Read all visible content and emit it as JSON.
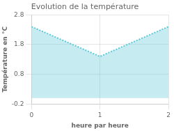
{
  "chart_data": {
    "type": "area",
    "title": "Evolution de la température",
    "xlabel": "heure par heure",
    "ylabel": "Température en °C",
    "x": [
      0,
      1,
      2
    ],
    "values": [
      2.4,
      1.4,
      2.4
    ],
    "color": "#5bc8d8",
    "line_style": "dotted",
    "xlim": [
      0,
      2
    ],
    "ylim": [
      -0.2,
      2.8
    ],
    "xticks": [
      0,
      1,
      2
    ],
    "yticks": [
      -0.2,
      0.8,
      1.8,
      2.8
    ],
    "grid": true
  }
}
